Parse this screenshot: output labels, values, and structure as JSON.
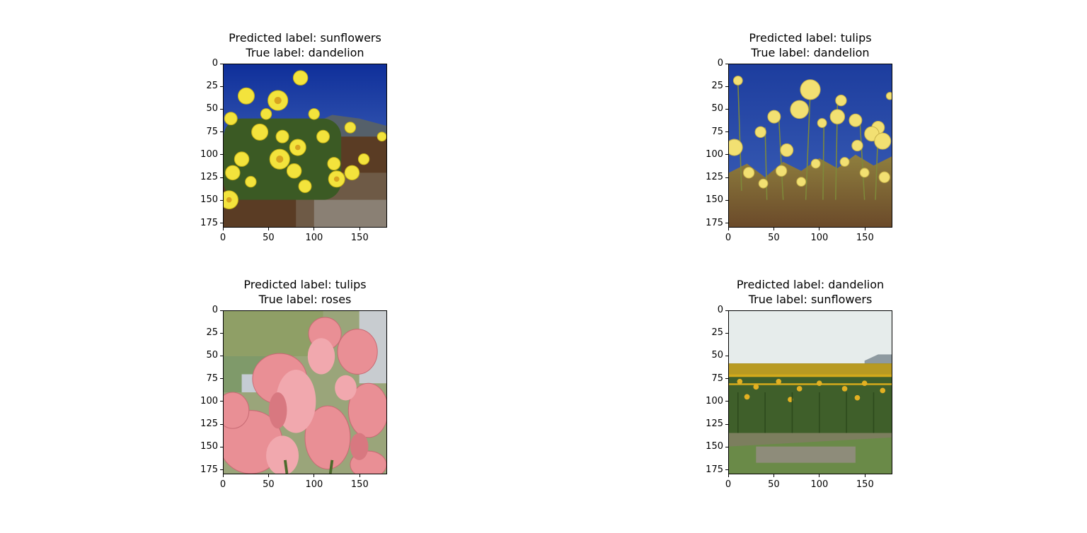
{
  "chart_data": [
    {
      "type": "image",
      "title": [
        "Predicted label: sunflowers",
        "True label: dandelion"
      ],
      "predicted": "sunflowers",
      "true": "dandelion",
      "image_subject": "yellow daisy-like flowers under a deep blue sky with distant hills",
      "xlim": [
        0,
        180
      ],
      "ylim": [
        180,
        0
      ],
      "xticks": [
        0,
        50,
        100,
        150
      ],
      "yticks": [
        0,
        25,
        50,
        75,
        100,
        125,
        150,
        175
      ],
      "xtick_labels": [
        "0",
        "50",
        "100",
        "150"
      ],
      "ytick_labels": [
        "0",
        "25",
        "50",
        "75",
        "100",
        "125",
        "150",
        "175"
      ]
    },
    {
      "type": "image",
      "title": [
        "Predicted label: tulips",
        "True label: dandelion"
      ],
      "predicted": "tulips",
      "true": "dandelion",
      "image_subject": "tall pale-yellow flowers against a blue sky",
      "xlim": [
        0,
        180
      ],
      "ylim": [
        180,
        0
      ],
      "xticks": [
        0,
        50,
        100,
        150
      ],
      "yticks": [
        0,
        25,
        50,
        75,
        100,
        125,
        150,
        175
      ],
      "xtick_labels": [
        "0",
        "50",
        "100",
        "150"
      ],
      "ytick_labels": [
        "0",
        "25",
        "50",
        "75",
        "100",
        "125",
        "150",
        "175"
      ]
    },
    {
      "type": "image",
      "title": [
        "Predicted label: tulips",
        "True label: roses"
      ],
      "predicted": "tulips",
      "true": "roses",
      "image_subject": "bouquet of pink roses by a window",
      "xlim": [
        0,
        180
      ],
      "ylim": [
        180,
        0
      ],
      "xticks": [
        0,
        50,
        100,
        150
      ],
      "yticks": [
        0,
        25,
        50,
        75,
        100,
        125,
        150,
        175
      ],
      "xtick_labels": [
        "0",
        "50",
        "100",
        "150"
      ],
      "ytick_labels": [
        "0",
        "25",
        "50",
        "75",
        "100",
        "125",
        "150",
        "175"
      ]
    },
    {
      "type": "image",
      "title": [
        "Predicted label: dandelion",
        "True label: sunflowers"
      ],
      "predicted": "dandelion",
      "true": "sunflowers",
      "image_subject": "field of sunflowers under an overcast sky",
      "xlim": [
        0,
        180
      ],
      "ylim": [
        180,
        0
      ],
      "xticks": [
        0,
        50,
        100,
        150
      ],
      "yticks": [
        0,
        25,
        50,
        75,
        100,
        125,
        150,
        175
      ],
      "xtick_labels": [
        "0",
        "50",
        "100",
        "150"
      ],
      "ytick_labels": [
        "0",
        "25",
        "50",
        "75",
        "100",
        "125",
        "150",
        "175"
      ]
    }
  ]
}
